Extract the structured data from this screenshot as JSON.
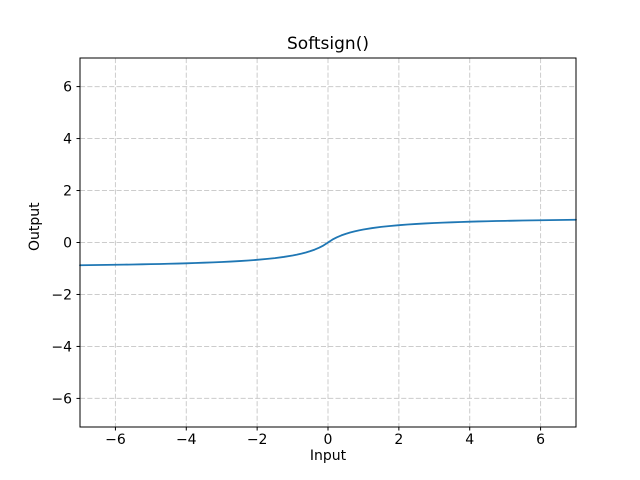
{
  "title": "Softsign()",
  "xlabel": "Input",
  "ylabel": "Output",
  "chart_data": {
    "type": "line",
    "title": "Softsign()",
    "xlabel": "Input",
    "ylabel": "Output",
    "xlim": [
      -7,
      7
    ],
    "ylim": [
      -7.1,
      7.1
    ],
    "x_ticks": [
      -6,
      -4,
      -2,
      0,
      2,
      4,
      6
    ],
    "x_tick_labels": [
      "−6",
      "−4",
      "−2",
      "0",
      "2",
      "4",
      "6"
    ],
    "y_ticks": [
      -6,
      -4,
      -2,
      0,
      2,
      4,
      6
    ],
    "y_tick_labels": [
      "−6",
      "−4",
      "−2",
      "0",
      "2",
      "4",
      "6"
    ],
    "grid": true,
    "grid_style": "dashed",
    "legend": "none",
    "colors": {
      "line": "#1f77b4",
      "grid": "#cccccc",
      "frame": "#000000",
      "text": "#000000",
      "background": "#ffffff"
    },
    "series": [
      {
        "name": "Softsign",
        "x": [
          -7,
          -6.75,
          -6.5,
          -6.25,
          -6,
          -5.75,
          -5.5,
          -5.25,
          -5,
          -4.75,
          -4.5,
          -4.25,
          -4,
          -3.75,
          -3.5,
          -3.25,
          -3,
          -2.75,
          -2.5,
          -2.25,
          -2,
          -1.75,
          -1.5,
          -1.25,
          -1,
          -0.875,
          -0.75,
          -0.625,
          -0.5,
          -0.375,
          -0.25,
          -0.125,
          0,
          0.125,
          0.25,
          0.375,
          0.5,
          0.625,
          0.75,
          0.875,
          1,
          1.25,
          1.5,
          1.75,
          2,
          2.25,
          2.5,
          2.75,
          3,
          3.25,
          3.5,
          3.75,
          4,
          4.25,
          4.5,
          4.75,
          5,
          5.25,
          5.5,
          5.75,
          6,
          6.25,
          6.5,
          6.75,
          7
        ],
        "y": [
          -0.875,
          -0.871,
          -0.8667,
          -0.8621,
          -0.8571,
          -0.8519,
          -0.8462,
          -0.84,
          -0.8333,
          -0.8261,
          -0.8182,
          -0.8095,
          -0.8,
          -0.7895,
          -0.7778,
          -0.7647,
          -0.75,
          -0.7333,
          -0.7143,
          -0.6923,
          -0.6667,
          -0.6364,
          -0.6,
          -0.5556,
          -0.5,
          -0.4667,
          -0.4286,
          -0.3846,
          -0.3333,
          -0.2727,
          -0.2,
          -0.1111,
          0,
          0.1111,
          0.2,
          0.2727,
          0.3333,
          0.3846,
          0.4286,
          0.4667,
          0.5,
          0.5556,
          0.6,
          0.6364,
          0.6667,
          0.6923,
          0.7143,
          0.7333,
          0.75,
          0.7647,
          0.7778,
          0.7895,
          0.8,
          0.8095,
          0.8182,
          0.8261,
          0.8333,
          0.84,
          0.8462,
          0.8519,
          0.8571,
          0.8621,
          0.8667,
          0.871,
          0.875
        ]
      }
    ]
  }
}
